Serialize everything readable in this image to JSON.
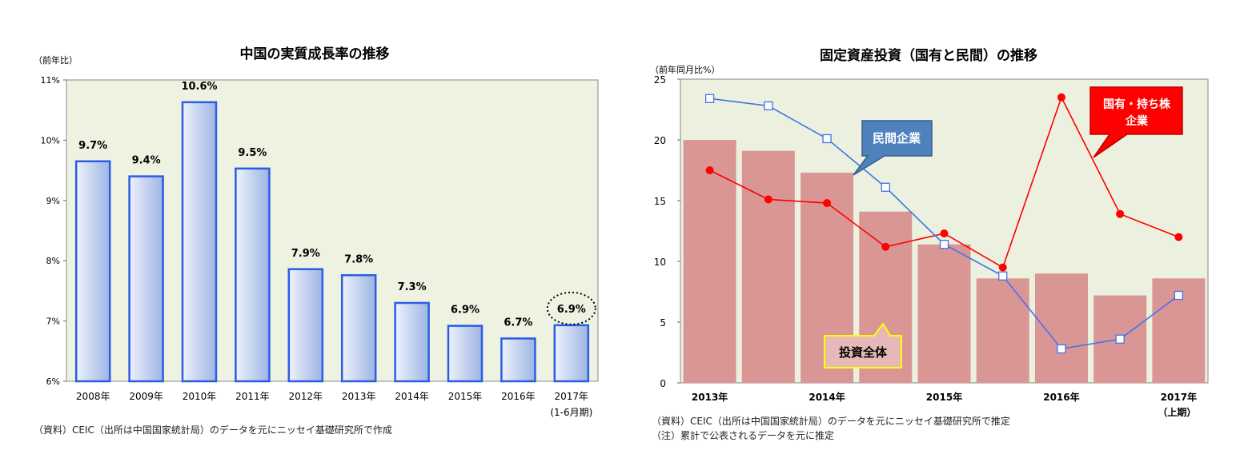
{
  "chart_data": [
    {
      "type": "bar",
      "title": "中国の実質成長率の推移",
      "ylabel": "（前年比）",
      "ylim": [
        6,
        11
      ],
      "yticks": [
        "6%",
        "7%",
        "8%",
        "9%",
        "10%",
        "11%"
      ],
      "ytick_values": [
        6,
        7,
        8,
        9,
        10,
        11
      ],
      "categories": [
        "2008年",
        "2009年",
        "2010年",
        "2011年",
        "2012年",
        "2013年",
        "2014年",
        "2015年",
        "2016年",
        "2017年"
      ],
      "category_note": "(1-6月期)",
      "values": [
        9.65,
        9.4,
        10.63,
        9.53,
        7.86,
        7.76,
        7.3,
        6.92,
        6.71,
        6.93
      ],
      "data_labels": [
        "9.7%",
        "9.4%",
        "10.6%",
        "9.5%",
        "7.9%",
        "7.8%",
        "7.3%",
        "6.9%",
        "6.7%",
        "6.9%"
      ],
      "highlight_index": 9,
      "colors": {
        "bar_border": "#2b5ce6",
        "bar_fill_light": "#eef2fb",
        "bar_fill_dark": "#9db4e4",
        "plot_bg": "#eef2e0"
      },
      "source": "（資料）CEIC（出所は中国国家統計局）のデータを元にニッセイ基礎研究所で作成"
    },
    {
      "type": "bar+line",
      "title": "固定資産投資（国有と民間）の推移",
      "ylabel": "（前年同月比%）",
      "ylim": [
        0,
        25
      ],
      "yticks": [
        "0",
        "5",
        "10",
        "15",
        "20",
        "25"
      ],
      "ytick_values": [
        0,
        5,
        10,
        15,
        20,
        25
      ],
      "x_labels": [
        "2013年",
        "2014年",
        "2015年",
        "2016年",
        "2017年"
      ],
      "x_label_note": "（上期）",
      "x_label_positions": [
        0,
        2,
        4,
        6,
        8
      ],
      "series": [
        {
          "name": "投資全体",
          "kind": "bar",
          "values": [
            20.0,
            19.1,
            17.3,
            14.1,
            11.4,
            8.6,
            9.0,
            7.2,
            8.6
          ],
          "color": "#d99694"
        },
        {
          "name": "民間企業",
          "kind": "line",
          "marker": "square",
          "values": [
            23.4,
            22.8,
            20.1,
            16.1,
            11.4,
            8.8,
            2.8,
            3.6,
            7.2
          ],
          "color": "#4472e8"
        },
        {
          "name": "国有・持ち株\n企業",
          "kind": "line",
          "marker": "circle",
          "values": [
            17.5,
            15.1,
            14.8,
            11.2,
            12.3,
            9.5,
            23.5,
            13.9,
            12.0
          ],
          "color": "#ff0000"
        }
      ],
      "callouts": {
        "private": {
          "line1": "民間企業",
          "color": "#4f81bd"
        },
        "state": {
          "line1": "国有・持ち株",
          "line2": "企業",
          "color": "#ff0000"
        },
        "total": {
          "line1": "投資全体",
          "color": "#e6b9b8"
        }
      },
      "colors": {
        "plot_bg": "#ebf1de"
      },
      "source": "（資料）CEIC（出所は中国国家統計局）のデータを元にニッセイ基礎研究所で推定",
      "note": "（注）累計で公表されるデータを元に推定"
    }
  ]
}
